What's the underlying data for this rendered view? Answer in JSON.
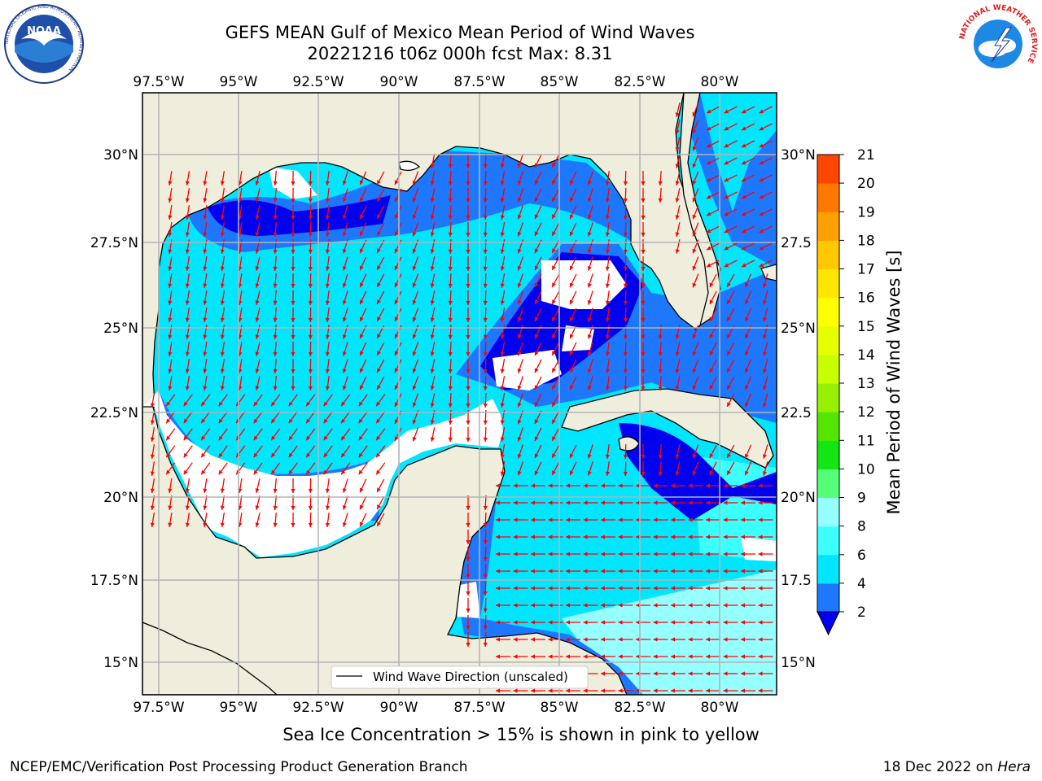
{
  "title": {
    "line1": "GEFS MEAN Gulf of Mexico Mean Period of Wind Waves",
    "line2": "20221216 t06z 000h fcst   Max: 8.31"
  },
  "map": {
    "lon_ticks": [
      "97.5°W",
      "95°W",
      "92.5°W",
      "90°W",
      "87.5°W",
      "85°W",
      "82.5°W",
      "80°W"
    ],
    "lat_ticks_left": [
      "30°N",
      "27.5°N",
      "25°N",
      "22.5°N",
      "20°N",
      "17.5°N",
      "15°N"
    ],
    "lat_ticks_right": [
      "30°N",
      "27.5",
      "25°N",
      "22.5",
      "20°N",
      "17.5",
      "15°N"
    ],
    "legend_label": "Wind Wave Direction (unscaled)",
    "land_color": "#efeedc",
    "ocean_calm_color": "#ffffff",
    "arrow_color": "#ff0000"
  },
  "colorbar": {
    "label": "Mean Period of Wind Waves [s]",
    "ticks": [
      "21",
      "20",
      "19",
      "18",
      "17",
      "16",
      "15",
      "14",
      "13",
      "12",
      "11",
      "10",
      "9",
      "8",
      "6",
      "4",
      "2"
    ],
    "colors": [
      "#0000f0",
      "#1e78ff",
      "#00e6ff",
      "#3cffff",
      "#96ffff",
      "#55ff77",
      "#14e614",
      "#55e600",
      "#96f000",
      "#c8ff00",
      "#e6ff00",
      "#ffff00",
      "#ffe600",
      "#ffc800",
      "#ffa000",
      "#ff7800",
      "#ff4600",
      "#ff0000"
    ]
  },
  "footer": {
    "ice_note": "Sea Ice Concentration > 15% is shown in pink to yellow",
    "credit": "NCEP/EMC/Verification Post Processing Product Generation Branch",
    "date_prefix": "18 Dec 2022 on ",
    "date_machine": "Hera"
  },
  "logos": {
    "noaa_text": "NOAA",
    "noaa_ring": "NATIONAL OCEANIC AND ATMOSPHERIC ADMINISTRATION",
    "noaa_ring_bottom": "U.S. DEPARTMENT OF COMMERCE",
    "nws_ring": "NATIONAL WEATHER SERVICE"
  }
}
